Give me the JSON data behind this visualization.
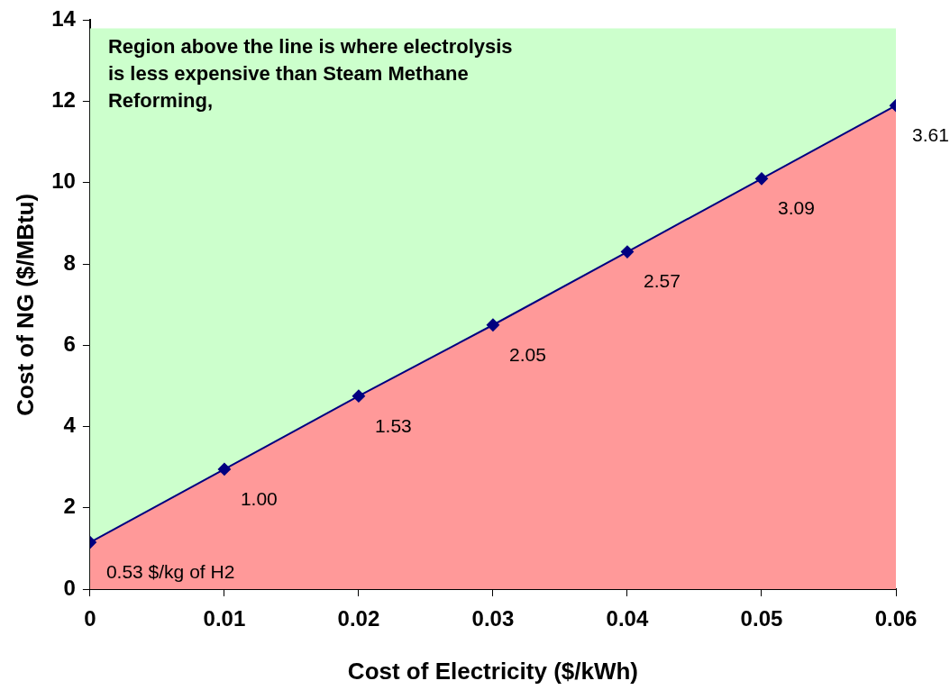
{
  "chart_data": {
    "type": "line",
    "xlabel": "Cost of Electricity ($/kWh)",
    "ylabel": "Cost of NG ($/MBtu)",
    "x": [
      0,
      0.01,
      0.02,
      0.03,
      0.04,
      0.05,
      0.06
    ],
    "series": [
      {
        "type": "area",
        "marker": "none",
        "color": "#ff9999",
        "values": [
          1.15,
          2.95,
          4.75,
          6.5,
          8.3,
          10.1,
          11.9
        ]
      },
      {
        "color": "#000080",
        "values": [
          1.15,
          2.95,
          4.75,
          6.5,
          8.3,
          10.1,
          11.9
        ]
      }
    ],
    "bands": [
      {
        "axis": "y",
        "from": 0,
        "to": 13.8,
        "color": "#ccffcc"
      }
    ],
    "annotations": [
      "Region above the line is where electrolysis is less expensive than Steam Methane Reforming,",
      {
        "text": "0.53 $/kg of H2",
        "x": 0,
        "y": 1.15
      },
      {
        "text": "1.00",
        "x": 0.01,
        "y": 2.95
      },
      {
        "text": "1.53",
        "x": 0.02,
        "y": 4.75
      },
      {
        "text": "2.05",
        "x": 0.03,
        "y": 6.5
      },
      {
        "text": "2.57",
        "x": 0.04,
        "y": 8.3
      },
      {
        "text": "3.09",
        "x": 0.05,
        "y": 10.1
      },
      {
        "text": "3.61",
        "x": 0.06,
        "y": 11.9
      }
    ],
    "xlim": [
      0,
      0.06
    ],
    "xticks": [
      0,
      0.01,
      0.02,
      0.03,
      0.04,
      0.05,
      0.06
    ],
    "ylim": [
      0,
      14
    ],
    "yticks": [
      0,
      2,
      4,
      6,
      8,
      10,
      12,
      14
    ],
    "marker": "diamond",
    "line_style": "solid",
    "grid": false,
    "legend": false
  }
}
